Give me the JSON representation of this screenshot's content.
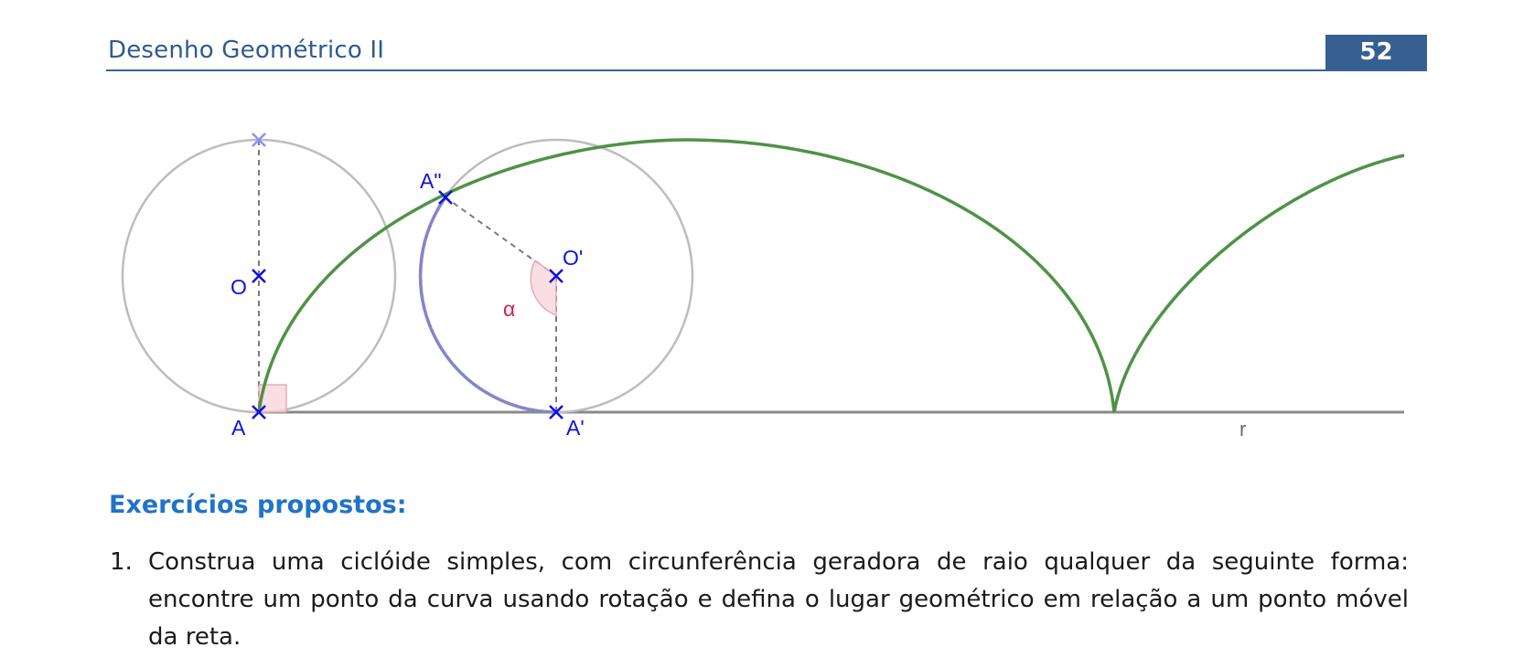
{
  "header": {
    "title": "Desenho Geométrico II",
    "page_number": "52"
  },
  "figure": {
    "labels": {
      "A": "A",
      "O": "O",
      "A_prime": "A'",
      "O_prime": "O'",
      "A_double_prime": "A\"",
      "alpha": "α",
      "line_r": "r"
    },
    "colors": {
      "cycloid": "#4f9246",
      "circle": "#bdbdbd",
      "arc": "#8585cc",
      "point": "#1010e0",
      "angle": "#d6204a",
      "line": "#8a8a8a"
    }
  },
  "exercises": {
    "heading": "Exercícios propostos:",
    "items": [
      {
        "number": "1.",
        "text": "Construa uma ciclóide simples, com circunferência geradora de raio qualquer da seguinte forma: encontre um ponto da curva usando rotação e defina o lugar geométrico em relação a um ponto móvel da reta."
      }
    ]
  }
}
